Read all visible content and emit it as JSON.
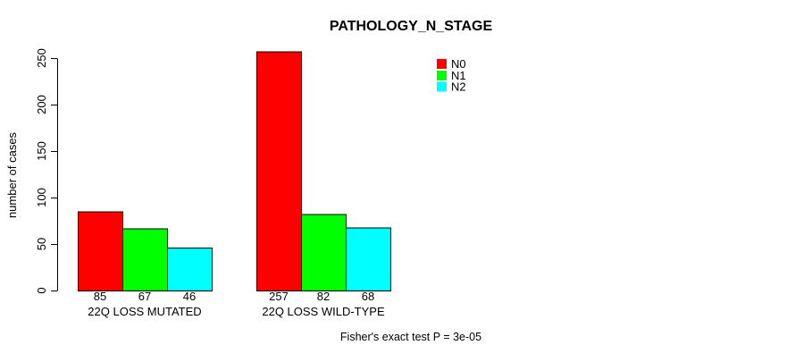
{
  "chart_data": {
    "type": "bar",
    "title": "PATHOLOGY_N_STAGE",
    "ylabel": "number of cases",
    "xlabel": "",
    "footer": "Fisher's exact test P = 3e-05",
    "categories": [
      "22Q LOSS MUTATED",
      "22Q LOSS WILD-TYPE"
    ],
    "series": [
      {
        "name": "N0",
        "color": "#FF0000",
        "values": [
          85,
          257
        ]
      },
      {
        "name": "N1",
        "color": "#00FF00",
        "values": [
          67,
          82
        ]
      },
      {
        "name": "N2",
        "color": "#00FFFF",
        "values": [
          46,
          68
        ]
      }
    ],
    "bar_value_labels": [
      [
        85,
        67,
        46
      ],
      [
        257,
        82,
        68
      ]
    ],
    "ylim": [
      0,
      250
    ],
    "yticks": [
      0,
      50,
      100,
      150,
      200,
      250
    ],
    "legend_position": "top-right",
    "grid": false,
    "bar_border_color": "#000000",
    "text_color": "#000000",
    "background": "#FFFFFF"
  }
}
